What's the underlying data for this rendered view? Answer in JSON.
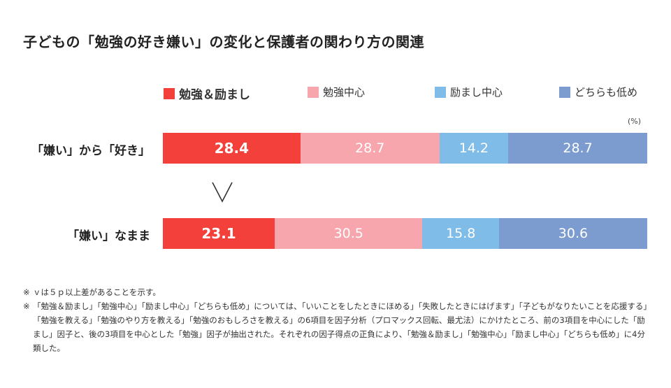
{
  "title": "子どもの「勉強の好き嫌い」の変化と保護者の関わり方の関連",
  "colors": {
    "s1": "#f3403a",
    "s2": "#f7a6ad",
    "s3": "#7fbde8",
    "s4": "#7c9ccf"
  },
  "compare_symbol": "∨",
  "notes": {
    "mark": "※",
    "n1": "ｖは５ｐ以上差があることを示す。",
    "n2": "「勉強＆励まし」「勉強中心」「励まし中心」「どちらも低め」については、「いいことをしたときにほめる」「失敗したときにはげます」「子どもがなりたいことを応援する」「勉強を教える」「勉強のやり方を教える」「勉強のおもしろさを教える」の6項目を因子分析（プロマックス回転、最尤法）にかけたところ、前の3項目を中心にした「励まし」因子と、後の3項目を中心とした「勉強」因子が抽出された。それぞれの因子得点の正負により、「勉強＆励まし」「勉強中心」「励まし中心」「どちらも低め」に4分類した。"
  },
  "chart_data": {
    "type": "bar",
    "orientation": "horizontal",
    "stacked": true,
    "unit_label": "(%)",
    "categories": [
      "「嫌い」から「好き」",
      "「嫌い」なまま"
    ],
    "series": [
      {
        "name": "勉強＆励まし",
        "color": "#f3403a",
        "values": [
          28.4,
          23.1
        ]
      },
      {
        "name": "勉強中心",
        "color": "#f7a6ad",
        "values": [
          28.7,
          30.5
        ]
      },
      {
        "name": "励まし中心",
        "color": "#7fbde8",
        "values": [
          14.2,
          15.8
        ]
      },
      {
        "name": "どちらも低め",
        "color": "#7c9ccf",
        "values": [
          28.7,
          30.6
        ]
      }
    ],
    "legend_position": "top",
    "grid": false,
    "xlim": [
      0,
      100
    ]
  }
}
